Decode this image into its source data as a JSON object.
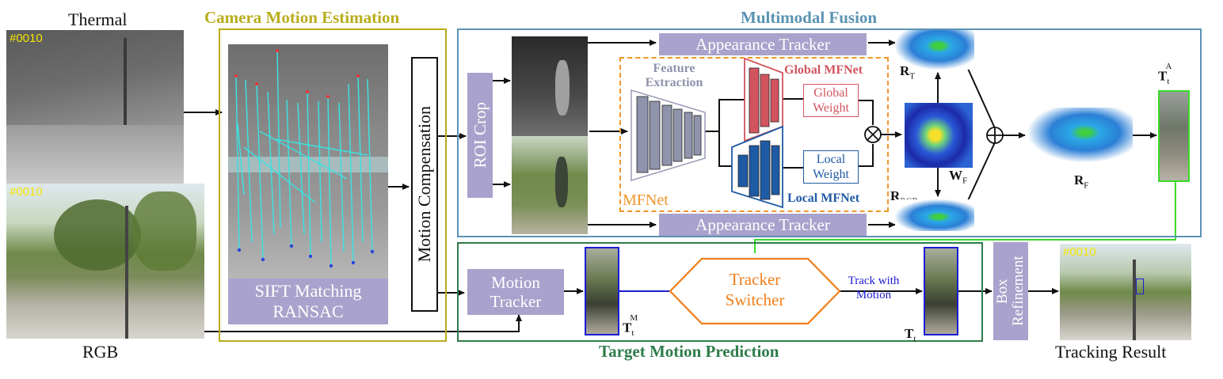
{
  "inputs": {
    "thermal_label": "Thermal",
    "rgb_label": "RGB",
    "frame_id": "#0010"
  },
  "camera_motion": {
    "title": "Camera Motion Estimation",
    "matching_label": "SIFT Matching RANSAC",
    "motion_compensation": "Motion Compensation"
  },
  "multimodal_fusion": {
    "title": "Multimodal Fusion",
    "roi_crop": "ROI Crop",
    "appearance_tracker_top": "Appearance Tracker",
    "appearance_tracker_bottom": "Appearance Tracker",
    "feature_extraction": "Feature Extraction",
    "global_mfnet": "Global MFNet",
    "local_mfnet": "Local MFNet",
    "global_weight": "Global Weight",
    "local_weight": "Local Weight",
    "mfnet": "MFNet",
    "r_t": "R",
    "r_t_sub": "T",
    "r_rgb": "R",
    "r_rgb_sub": "RGB",
    "w_f": "W",
    "w_f_sub": "F",
    "r_f": "R",
    "r_f_sub": "F",
    "t_a": "T",
    "t_a_sub": "t",
    "t_a_sup": "A"
  },
  "target_motion": {
    "title": "Target Motion Prediction",
    "motion_tracker": "Motion Tracker",
    "tracker_switcher": "Tracker Switcher",
    "track_with_motion": "Track with Motion",
    "t_m": "T",
    "t_m_sub": "t",
    "t_m_sup": "M",
    "t_t": "T",
    "t_t_sub": "t"
  },
  "output": {
    "box_refinement": "Box Refinement",
    "tracking_result": "Tracking Result"
  },
  "colors": {
    "camera_motion": "#b9ad1c",
    "multimodal_fusion": "#5a93b3",
    "target_motion": "#2e7d4a",
    "process_box": "#a9a2cc",
    "mfnet_border": "#f0962a",
    "global_net": "#d2545f",
    "local_net": "#1f5aa5",
    "switcher": "#f07d1a",
    "motion_link": "#1b1bd6",
    "green_link": "#3adb2a"
  }
}
